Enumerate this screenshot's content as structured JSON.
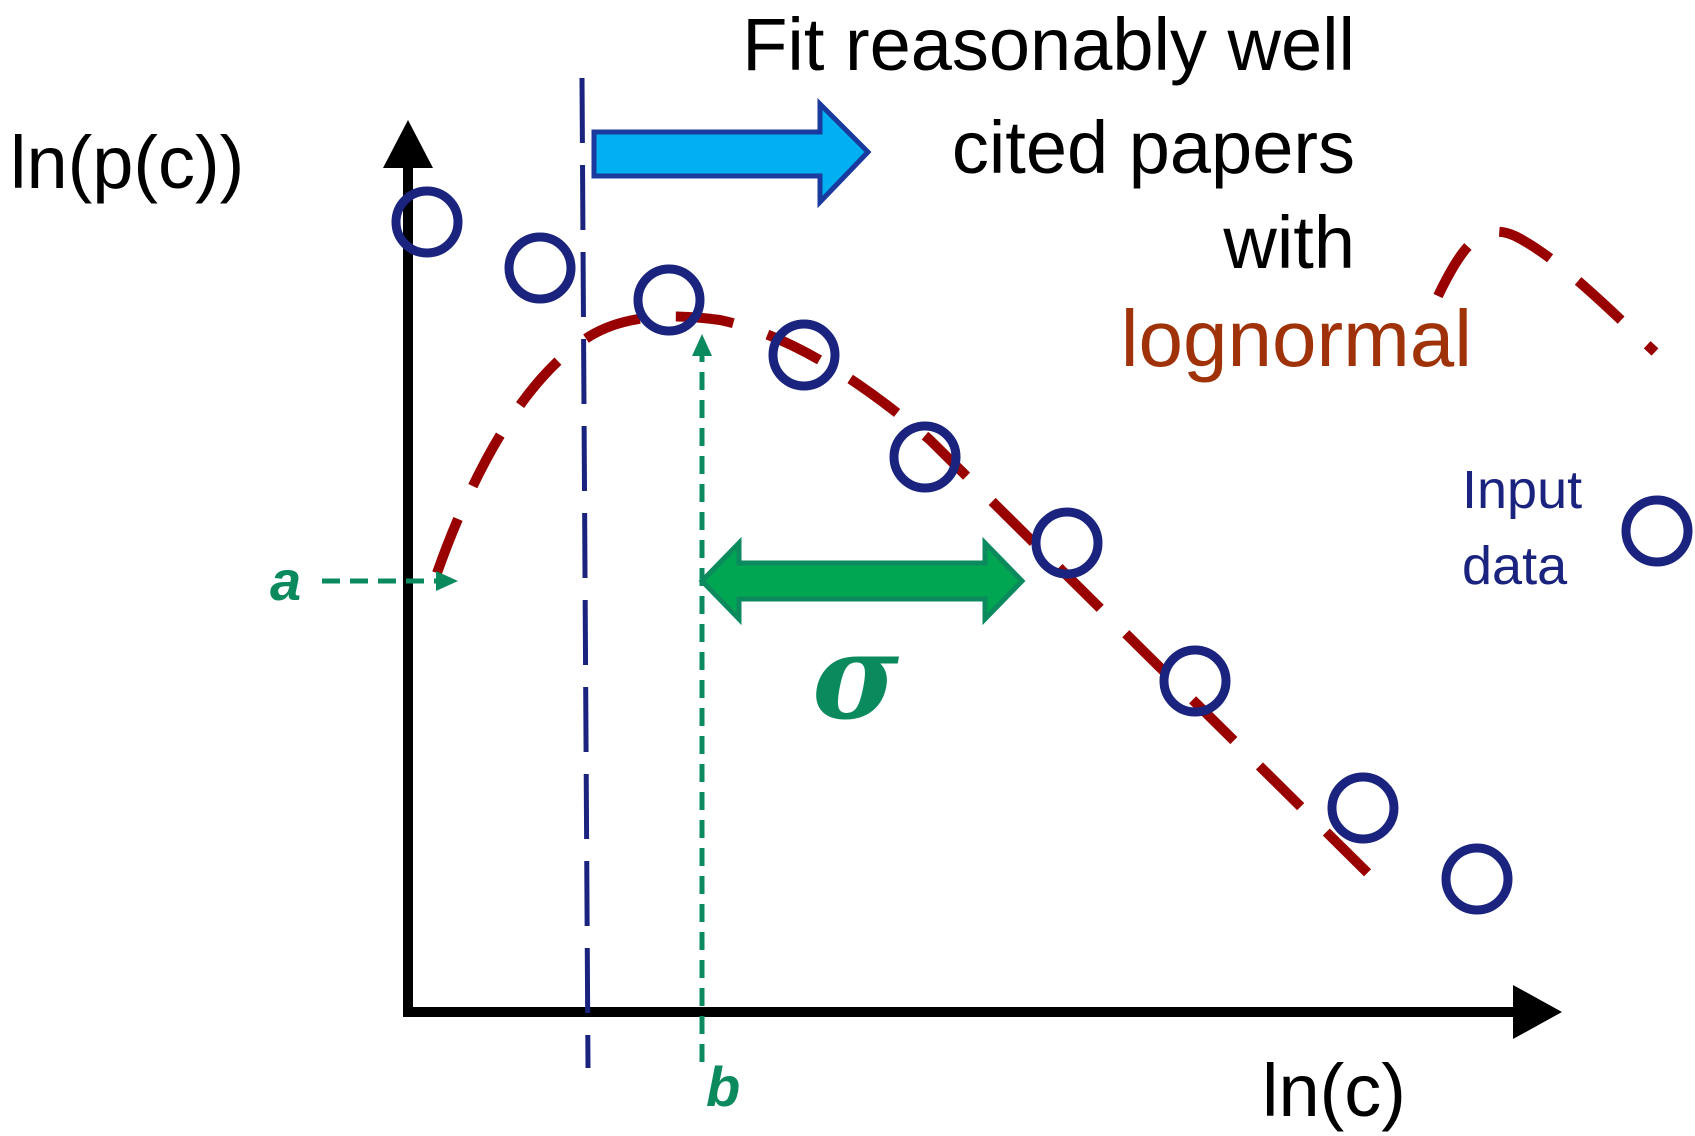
{
  "axes": {
    "y_label": "ln(p(c))",
    "x_label": "ln(c)"
  },
  "annotation": {
    "line1": "Fit reasonably well",
    "line2": "cited papers",
    "line3": "with",
    "highlight": "lognormal"
  },
  "legend": {
    "curve_label": "lognormal",
    "marker_line1": "Input",
    "marker_line2": "data"
  },
  "params": {
    "a": "a",
    "b": "b",
    "sigma": "σ"
  },
  "colors": {
    "axis": "#000000",
    "data_points": "#1a237e",
    "curve": "#990000",
    "annotation_text": "#000000",
    "lognormal_text": "#a0320a",
    "param_green": "#0b8a5e",
    "sigma_arrow_fill": "#00a651",
    "fit_arrow_fill": "#00b0f0",
    "fit_arrow_stroke": "#1a3a9e",
    "cutoff_line": "#1a237e"
  },
  "icons": {
    "data_marker": "circle-icon",
    "fit_arrow": "right-arrow-icon",
    "sigma_arrow": "double-arrow-icon"
  }
}
